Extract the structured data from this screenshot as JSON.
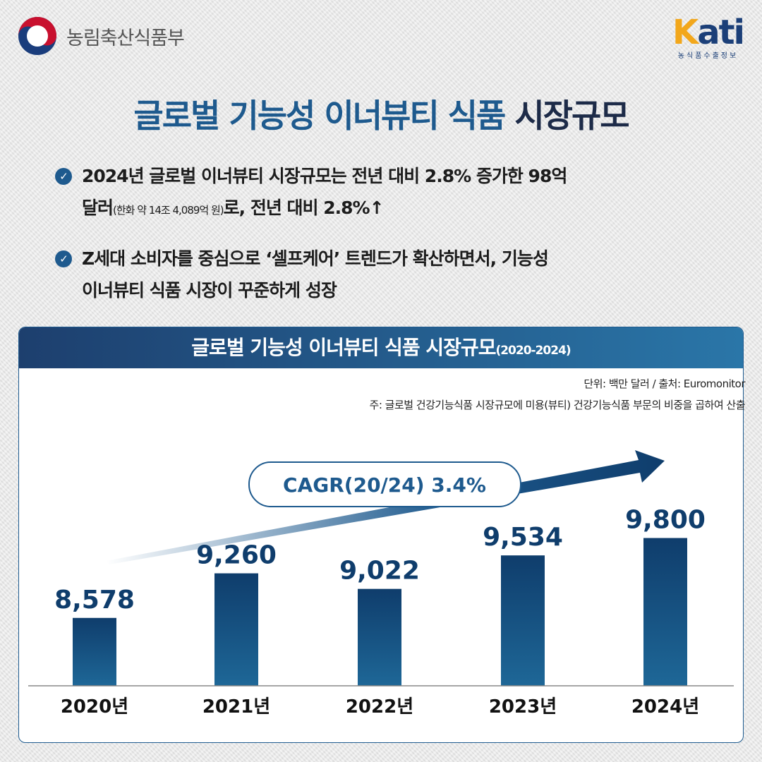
{
  "header": {
    "ministry": "농림축산식품부",
    "kati_logo": "Kati",
    "kati_sub": "농식품수출정보"
  },
  "title": {
    "main": "글로벌 기능성 이너뷰티 식품",
    "highlight": "시장규모"
  },
  "bullets": [
    {
      "line1": "2024년 글로벌 이너뷰티 시장규모는 전년 대비 2.8% 증가한 98억",
      "line2_a": "달러",
      "line2_small": "(한화 약 14조 4,089억 원)",
      "line2_b": "로, 전년 대비 2.8%↑"
    },
    {
      "line1": "Z세대 소비자를 중심으로 ‘셀프케어’ 트렌드가 확산하면서, 기능성",
      "line2_a": "이너뷰티 식품 시장이 꾸준하게 성장"
    }
  ],
  "chart_data": {
    "type": "bar",
    "title": "글로벌 기능성 이너뷰티 식품 시장규모",
    "subtitle": "(2020-2024)",
    "unit_note": "단위: 백만 달러 / 출처: Euromonitor",
    "footnote": "주: 글로벌 건강기능식품 시장규모에 미용(뷰티) 건강기능식품 부문의 비중을 곱하여 산출",
    "categories": [
      "2020년",
      "2021년",
      "2022년",
      "2023년",
      "2024년"
    ],
    "values": [
      8578,
      9260,
      9022,
      9534,
      9800
    ],
    "data_labels": [
      "8,578",
      "9,260",
      "9,022",
      "9,534",
      "9,800"
    ],
    "annotation": "CAGR(20/24) 3.4%",
    "ylim": [
      7540,
      10000
    ],
    "grid": false,
    "colors": {
      "bar_top": "#0f3d6c",
      "bar_bottom": "#1e6797",
      "accent": "#1e5a8e"
    }
  }
}
